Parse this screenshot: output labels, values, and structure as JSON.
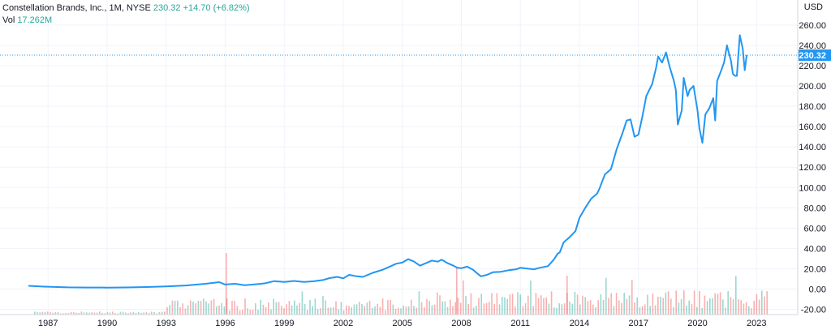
{
  "header": {
    "symbol_info": "Constellation Brands, Inc., 1M, NYSE",
    "price": "230.32",
    "change": "+14.70 (+6.82%)",
    "vol_label": "Vol",
    "vol_value": "17.262M"
  },
  "axis": {
    "unit_label": "USD",
    "last_price_label": "230.32"
  },
  "colors": {
    "line": "#2196f3",
    "vol_up": "#26a69a",
    "vol_down": "#ef5350",
    "grid": "#f0f3fa",
    "badge_bg": "#2196f3"
  },
  "chart_data": {
    "type": "line",
    "title": "Constellation Brands, Inc., 1M, NYSE",
    "xlabel": "",
    "ylabel": "USD",
    "ylim": [
      -20,
      260
    ],
    "grid": true,
    "x_ticks": [
      "1987",
      "1990",
      "1993",
      "1996",
      "1999",
      "2002",
      "2005",
      "2008",
      "2011",
      "2014",
      "2017",
      "2020",
      "2023"
    ],
    "y_ticks": [
      "-20.00",
      "0.00",
      "20.00",
      "40.00",
      "60.00",
      "80.00",
      "100.00",
      "120.00",
      "140.00",
      "160.00",
      "180.00",
      "200.00",
      "220.00",
      "240.00",
      "260.00"
    ],
    "last_price": 230.32,
    "series": [
      {
        "values": [
          [
            1986.0,
            3.2
          ],
          [
            1986.8,
            2.4
          ],
          [
            1988.0,
            1.7
          ],
          [
            1989.0,
            1.5
          ],
          [
            1990.0,
            1.4
          ],
          [
            1991.0,
            1.6
          ],
          [
            1992.0,
            2.0
          ],
          [
            1993.0,
            2.6
          ],
          [
            1994.0,
            3.5
          ],
          [
            1995.0,
            5.2
          ],
          [
            1995.7,
            6.8
          ],
          [
            1996.0,
            4.5
          ],
          [
            1996.5,
            5.2
          ],
          [
            1997.0,
            3.8
          ],
          [
            1997.5,
            4.6
          ],
          [
            1998.0,
            5.6
          ],
          [
            1998.5,
            7.8
          ],
          [
            1999.0,
            7.0
          ],
          [
            1999.5,
            8.0
          ],
          [
            2000.0,
            7.0
          ],
          [
            2000.5,
            7.7
          ],
          [
            2001.0,
            9.0
          ],
          [
            2001.3,
            10.8
          ],
          [
            2001.7,
            12.0
          ],
          [
            2002.0,
            10.5
          ],
          [
            2002.3,
            14.0
          ],
          [
            2002.7,
            12.5
          ],
          [
            2003.0,
            12.0
          ],
          [
            2003.5,
            16.0
          ],
          [
            2004.0,
            19.0
          ],
          [
            2004.3,
            21.5
          ],
          [
            2004.7,
            25.0
          ],
          [
            2005.0,
            26.0
          ],
          [
            2005.3,
            29.5
          ],
          [
            2005.6,
            27.0
          ],
          [
            2005.9,
            23.0
          ],
          [
            2006.2,
            25.5
          ],
          [
            2006.5,
            28.0
          ],
          [
            2006.8,
            27.0
          ],
          [
            2007.0,
            29.0
          ],
          [
            2007.3,
            25.5
          ],
          [
            2007.6,
            23.0
          ],
          [
            2007.8,
            21.0
          ],
          [
            2008.0,
            20.5
          ],
          [
            2008.3,
            22.0
          ],
          [
            2008.6,
            19.0
          ],
          [
            2008.8,
            15.5
          ],
          [
            2009.0,
            12.5
          ],
          [
            2009.3,
            14.0
          ],
          [
            2009.6,
            16.5
          ],
          [
            2010.0,
            17.0
          ],
          [
            2010.4,
            18.5
          ],
          [
            2010.8,
            19.5
          ],
          [
            2011.0,
            21.0
          ],
          [
            2011.4,
            20.0
          ],
          [
            2011.7,
            19.5
          ],
          [
            2012.0,
            21.0
          ],
          [
            2012.4,
            22.5
          ],
          [
            2012.7,
            29.0
          ],
          [
            2012.9,
            35.0
          ],
          [
            2013.0,
            36.0
          ],
          [
            2013.2,
            46.0
          ],
          [
            2013.5,
            51.0
          ],
          [
            2013.8,
            57.0
          ],
          [
            2014.0,
            70.0
          ],
          [
            2014.3,
            80.0
          ],
          [
            2014.6,
            89.0
          ],
          [
            2014.9,
            94.0
          ],
          [
            2015.0,
            98.0
          ],
          [
            2015.3,
            113.0
          ],
          [
            2015.6,
            118.0
          ],
          [
            2015.9,
            138.0
          ],
          [
            2016.2,
            154.0
          ],
          [
            2016.4,
            166.0
          ],
          [
            2016.6,
            167.0
          ],
          [
            2016.8,
            150.0
          ],
          [
            2017.0,
            152.0
          ],
          [
            2017.2,
            170.0
          ],
          [
            2017.4,
            190.0
          ],
          [
            2017.7,
            202.0
          ],
          [
            2017.9,
            218.0
          ],
          [
            2018.0,
            229.0
          ],
          [
            2018.2,
            223.0
          ],
          [
            2018.4,
            233.0
          ],
          [
            2018.6,
            218.0
          ],
          [
            2018.8,
            205.0
          ],
          [
            2018.9,
            196.0
          ],
          [
            2019.0,
            162.0
          ],
          [
            2019.2,
            176.0
          ],
          [
            2019.3,
            208.0
          ],
          [
            2019.5,
            190.0
          ],
          [
            2019.6,
            196.0
          ],
          [
            2019.8,
            200.0
          ],
          [
            2020.0,
            176.0
          ],
          [
            2020.1,
            158.0
          ],
          [
            2020.25,
            144.0
          ],
          [
            2020.4,
            172.0
          ],
          [
            2020.6,
            178.0
          ],
          [
            2020.8,
            188.0
          ],
          [
            2020.9,
            166.0
          ],
          [
            2021.0,
            205.0
          ],
          [
            2021.2,
            215.0
          ],
          [
            2021.35,
            223.0
          ],
          [
            2021.5,
            240.0
          ],
          [
            2021.6,
            232.0
          ],
          [
            2021.7,
            225.0
          ],
          [
            2021.8,
            212.0
          ],
          [
            2021.9,
            210.0
          ],
          [
            2022.0,
            210.0
          ],
          [
            2022.15,
            250.0
          ],
          [
            2022.3,
            237.0
          ],
          [
            2022.4,
            215.5
          ],
          [
            2022.5,
            230.3
          ]
        ]
      }
    ],
    "volume_bars": "decorative volume histogram below the price line, alternating teal (up) and red (down)"
  }
}
